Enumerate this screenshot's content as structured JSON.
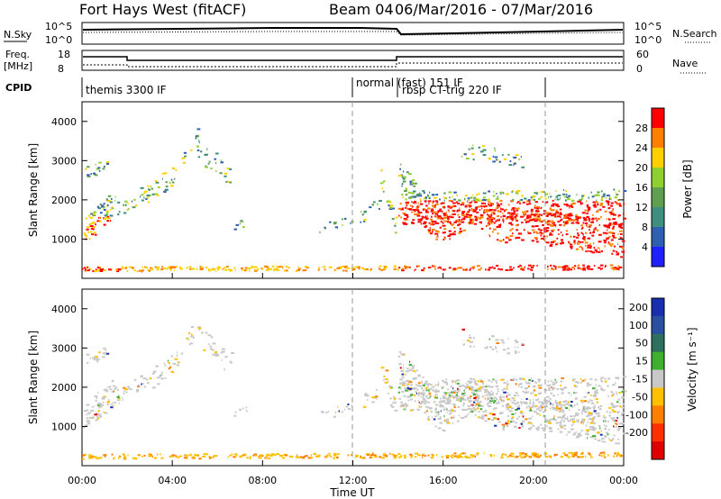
{
  "header": {
    "station": "Fort Hays West (fitACF)",
    "beam": "Beam 04",
    "date_range": "06/Mar/2016 - 07/Mar/2016"
  },
  "small_panels": {
    "nsky_label": "N.Sky",
    "nsearch_label": "N.Search",
    "nsky_ticks": [
      "10^5",
      "10^0"
    ],
    "freq_label_1": "Freq.",
    "freq_label_2": "[MHz]",
    "freq_ticks": [
      "18",
      "8"
    ],
    "nave_label": "Nave",
    "nave_ticks": [
      "60",
      "0"
    ],
    "cpid_label": "CPID",
    "cpid_segments": [
      "themis 3300 IF",
      "normal (fast) 151 IF",
      "rbsp CT-trig 220 IF"
    ]
  },
  "chart_data": [
    {
      "type": "heatmap",
      "name": "power_panel",
      "ylabel": "Slant Range [km]",
      "xlabel": "Time UT",
      "x_ticks": [
        "00:00",
        "04:00",
        "08:00",
        "12:00",
        "16:00",
        "20:00",
        "00:00"
      ],
      "y_ticks": [
        1000,
        2000,
        3000,
        4000
      ],
      "ylim": [
        0,
        4500
      ],
      "xlim_hours": [
        0,
        24
      ],
      "colorbar_label": "Power [dB]",
      "colorbar_ticks": [
        4,
        8,
        12,
        16,
        20,
        24,
        28
      ],
      "colorbar_colors": [
        "#2020ff",
        "#2f5fb0",
        "#3f8f7f",
        "#5f9f4f",
        "#8fcf2f",
        "#ffd000",
        "#ff8000",
        "#ff0000"
      ]
    },
    {
      "type": "heatmap",
      "name": "velocity_panel",
      "ylabel": "Slant Range [km]",
      "xlabel": "Time UT",
      "x_ticks": [
        "00:00",
        "04:00",
        "08:00",
        "12:00",
        "16:00",
        "20:00",
        "00:00"
      ],
      "y_ticks": [
        1000,
        2000,
        3000,
        4000
      ],
      "ylim": [
        0,
        4500
      ],
      "xlim_hours": [
        0,
        24
      ],
      "colorbar_label": "Velocity [m s⁻¹]",
      "colorbar_ticks": [
        "200",
        "100",
        "50",
        "15",
        "-15",
        "-50",
        "-100",
        "-200"
      ],
      "colorbar_colors": [
        "#1a2fb0",
        "#2a4fa0",
        "#2f6f5f",
        "#3faf2f",
        "#c8c8c8",
        "#ffc000",
        "#ff8000",
        "#ff3000",
        "#e00000"
      ]
    }
  ],
  "axis": {
    "time_label": "Time UT"
  }
}
